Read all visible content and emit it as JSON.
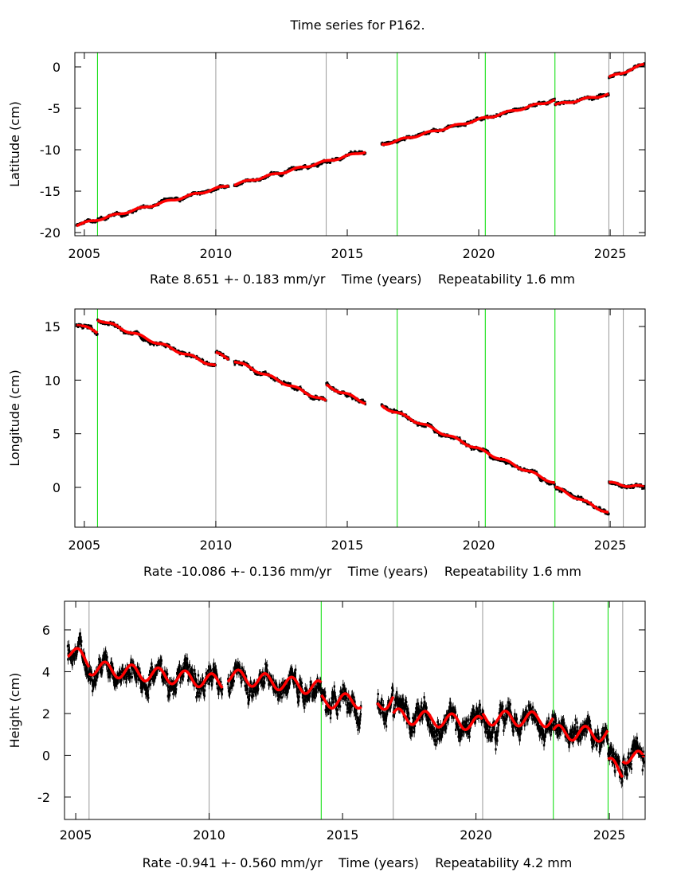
{
  "chart_data": {
    "type": "scatter",
    "title": "Time series for P162.",
    "panels": [
      {
        "ylabel": "Latitude (cm)",
        "caption": "Rate 8.651 +- 0.183 mm/yr    Time (years)    Repeatability 1.6 mm",
        "xlim": [
          2004.64,
          2026.33
        ],
        "ylim": [
          -20.38,
          1.73
        ],
        "xticks": [
          2005,
          2010,
          2015,
          2020,
          2025
        ],
        "yticks": [
          0,
          -5,
          -10,
          -15,
          -20
        ],
        "noise": 0.18,
        "errorbars": false,
        "seasonal_amplitude": 0.12,
        "segments": [
          [
            2004.7,
            2010.5,
            -19.1,
            -14.3
          ],
          [
            2010.7,
            2015.7,
            -14.2,
            -10.2
          ],
          [
            2016.3,
            2022.9,
            -9.4,
            -4.0
          ],
          [
            2022.9,
            2024.95,
            -4.6,
            -3.3
          ],
          [
            2024.95,
            2026.3,
            -1.3,
            0.3
          ]
        ],
        "events": [
          [
            2005.5,
            "#00dd00"
          ],
          [
            2010.0,
            "#999999"
          ],
          [
            2014.2,
            "#999999"
          ],
          [
            2016.9,
            "#00dd00"
          ],
          [
            2020.25,
            "#00dd00"
          ],
          [
            2022.9,
            "#00dd00"
          ],
          [
            2024.95,
            "#999999"
          ],
          [
            2025.5,
            "#999999"
          ]
        ]
      },
      {
        "ylabel": "Longitude (cm)",
        "caption": "Rate -10.086 +- 0.136 mm/yr    Time (years)    Repeatability 1.6 mm",
        "xlim": [
          2004.64,
          2026.33
        ],
        "ylim": [
          -3.71,
          16.63
        ],
        "xticks": [
          2005,
          2010,
          2015,
          2020,
          2025
        ],
        "yticks": [
          0,
          5,
          10,
          15
        ],
        "noise": 0.18,
        "errorbars": false,
        "seasonal_amplitude": 0.12,
        "segments": [
          [
            2004.7,
            2005.5,
            15.2,
            14.5
          ],
          [
            2005.5,
            2010.0,
            15.7,
            11.3
          ],
          [
            2010.0,
            2010.5,
            12.5,
            12.0
          ],
          [
            2010.7,
            2014.2,
            11.8,
            8.0
          ],
          [
            2014.2,
            2015.7,
            9.5,
            7.9
          ],
          [
            2016.3,
            2022.9,
            7.6,
            0.4
          ],
          [
            2022.9,
            2024.95,
            0.0,
            -2.4
          ],
          [
            2024.95,
            2026.3,
            0.4,
            0.0
          ]
        ],
        "events": [
          [
            2005.5,
            "#00dd00"
          ],
          [
            2010.0,
            "#999999"
          ],
          [
            2014.2,
            "#999999"
          ],
          [
            2016.9,
            "#00dd00"
          ],
          [
            2020.25,
            "#00dd00"
          ],
          [
            2022.9,
            "#00dd00"
          ],
          [
            2024.95,
            "#999999"
          ],
          [
            2025.5,
            "#999999"
          ]
        ]
      },
      {
        "ylabel": "Height (cm)",
        "caption": "Rate -0.941 +- 0.560 mm/yr    Time (years)    Repeatability 4.2 mm",
        "xlim": [
          2004.58,
          2026.34
        ],
        "ylim": [
          -3.07,
          7.37
        ],
        "xticks": [
          2005,
          2010,
          2015,
          2020,
          2025
        ],
        "yticks": [
          6,
          4,
          2,
          0,
          -2
        ],
        "noise": 0.55,
        "errorbars": true,
        "seasonal_amplitude": 0.35,
        "segments": [
          [
            2004.7,
            2005.5,
            5.0,
            4.5
          ],
          [
            2005.5,
            2010.5,
            4.2,
            3.5
          ],
          [
            2010.7,
            2014.2,
            3.8,
            3.2
          ],
          [
            2014.2,
            2015.7,
            2.6,
            2.6
          ],
          [
            2016.3,
            2016.9,
            2.4,
            2.7
          ],
          [
            2016.9,
            2020.25,
            1.9,
            1.5
          ],
          [
            2020.25,
            2022.9,
            1.8,
            1.7
          ],
          [
            2022.9,
            2024.95,
            1.1,
            1.0
          ],
          [
            2024.95,
            2025.5,
            -0.4,
            -0.8
          ],
          [
            2025.5,
            2026.3,
            0.0,
            -0.2
          ]
        ],
        "events": [
          [
            2005.5,
            "#999999"
          ],
          [
            2010.0,
            "#999999"
          ],
          [
            2014.2,
            "#00dd00"
          ],
          [
            2016.9,
            "#999999"
          ],
          [
            2020.25,
            "#999999"
          ],
          [
            2022.9,
            "#00dd00"
          ],
          [
            2024.95,
            "#00dd00"
          ],
          [
            2025.5,
            "#999999"
          ]
        ]
      }
    ],
    "colors": {
      "data": "#000000",
      "model": "#ff0000"
    }
  }
}
